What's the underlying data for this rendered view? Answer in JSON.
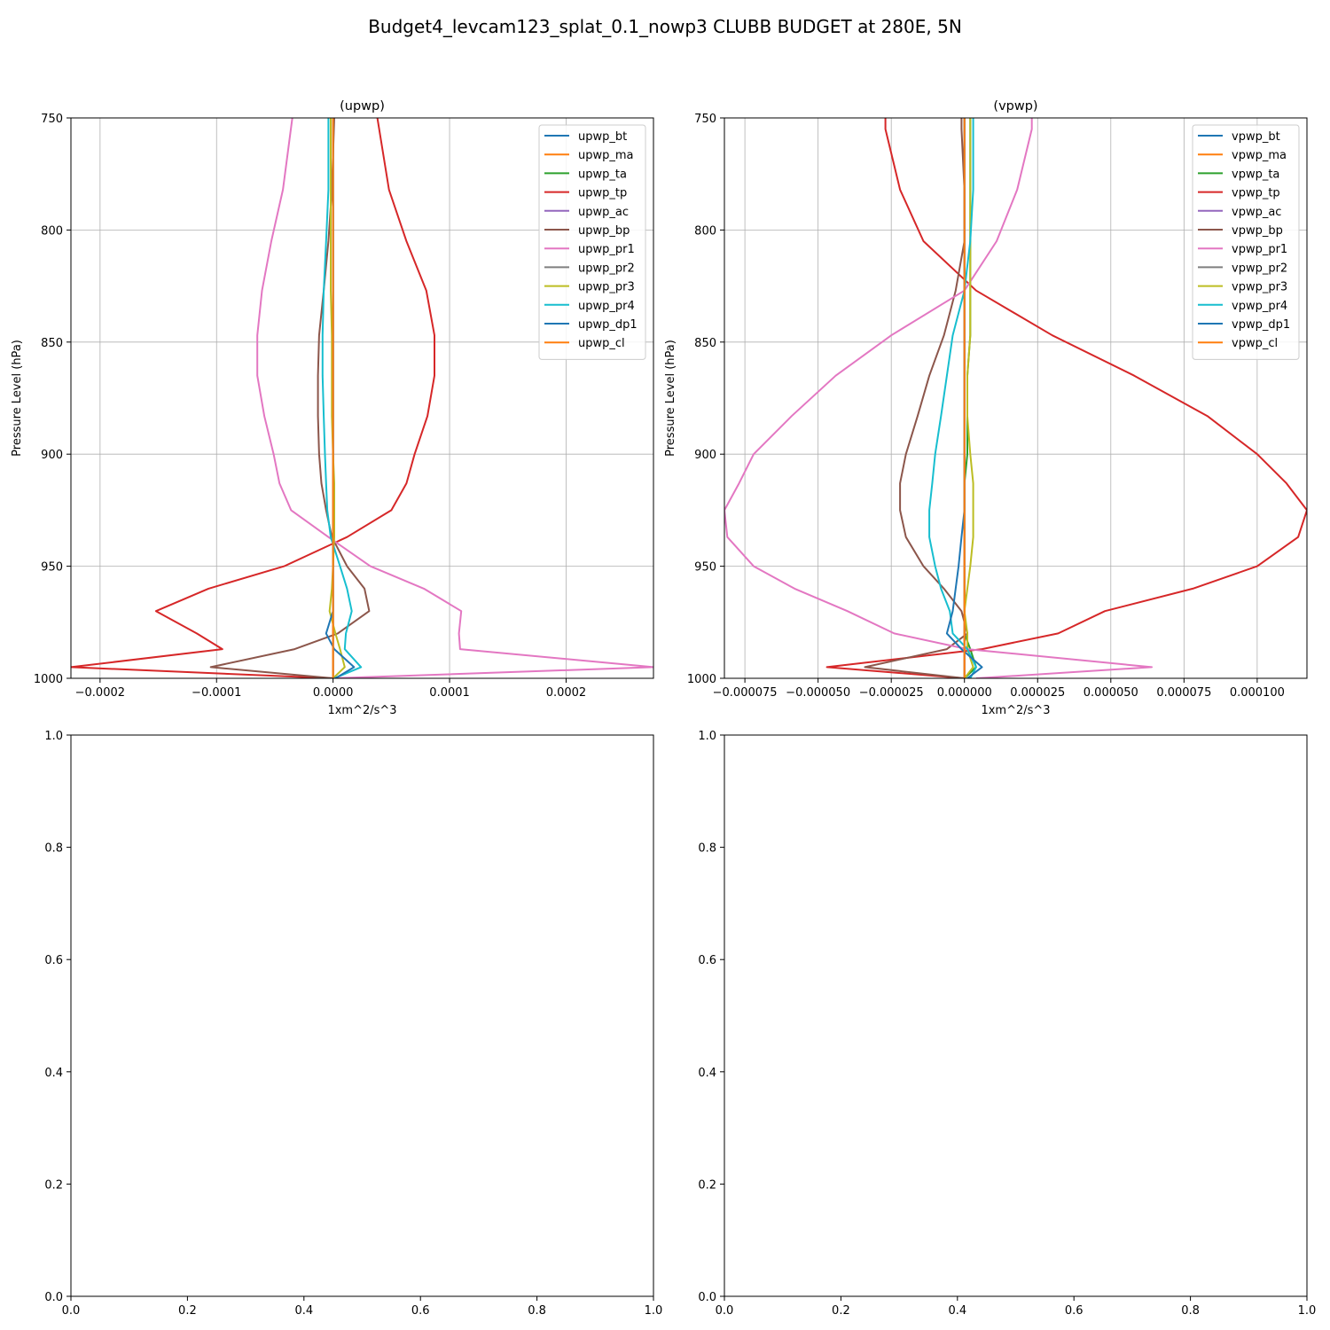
{
  "figure": {
    "suptitle": "Budget4_levcam123_splat_0.1_nowp3 CLUBB BUDGET at 280E, 5N"
  },
  "chart_data": [
    {
      "type": "line",
      "title": "(upwp)",
      "xlabel": "1xm^2/s^3",
      "ylabel": "Pressure Level (hPa)",
      "xlim": [
        -0.000225,
        0.000275
      ],
      "ylim": [
        1000,
        750
      ],
      "y_inverted": true,
      "xticks": [
        -0.0002,
        -0.0001,
        0.0,
        0.0001,
        0.0002
      ],
      "xtick_labels": [
        "−0.0002",
        "−0.0001",
        "0.0000",
        "0.0001",
        "0.0002"
      ],
      "yticks": [
        750,
        800,
        850,
        900,
        950,
        1000
      ],
      "ytick_labels": [
        "750",
        "800",
        "850",
        "900",
        "950",
        "1000"
      ],
      "grid": true,
      "legend": "upper right",
      "levels": [
        750,
        782,
        805,
        827,
        847,
        865,
        883,
        900,
        913,
        925,
        937,
        950,
        960,
        970,
        980,
        987,
        995,
        1000
      ],
      "series": [
        {
          "name": "upwp_bt",
          "color": "#1f77b4",
          "values": [
            0,
            0,
            0,
            0,
            0,
            0,
            0,
            0,
            0,
            0,
            0,
            0,
            0,
            0,
            0,
            0,
            0,
            0
          ]
        },
        {
          "name": "upwp_ma",
          "color": "#ff7f0e",
          "values": [
            0,
            0,
            0,
            0,
            0,
            0,
            0,
            0,
            0,
            0,
            0,
            0,
            0,
            0,
            0,
            0,
            0,
            0
          ]
        },
        {
          "name": "upwp_ta",
          "color": "#2ca02c",
          "values": [
            0,
            0,
            0,
            0,
            0,
            0,
            0,
            0,
            0,
            0,
            0,
            0,
            0,
            0,
            0,
            0,
            0,
            0
          ]
        },
        {
          "name": "upwp_tp",
          "color": "#d62728",
          "values": [
            3.8e-05,
            4.8e-05,
            6.3e-05,
            8e-05,
            8.7e-05,
            8.7e-05,
            8.1e-05,
            7e-05,
            6.3e-05,
            5e-05,
            1.2e-05,
            -4.2e-05,
            -0.000107,
            -0.000152,
            -0.000117,
            -9.5e-05,
            -0.000225,
            0
          ]
        },
        {
          "name": "upwp_ac",
          "color": "#9467bd",
          "values": [
            0,
            0,
            0,
            0,
            0,
            0,
            0,
            0,
            0,
            0,
            0,
            0,
            0,
            0,
            0,
            0,
            0,
            0
          ]
        },
        {
          "name": "upwp_bp",
          "color": "#8c564b",
          "values": [
            1e-06,
            -1e-06,
            -4e-06,
            -8e-06,
            -1.2e-05,
            -1.3e-05,
            -1.3e-05,
            -1.2e-05,
            -1e-05,
            -6e-06,
            -1e-06,
            1.2e-05,
            2.7e-05,
            3.1e-05,
            4e-06,
            -3.3e-05,
            -0.000105,
            0
          ]
        },
        {
          "name": "upwp_pr1",
          "color": "#e377c2",
          "values": [
            -3.5e-05,
            -4.3e-05,
            -5.3e-05,
            -6.1e-05,
            -6.5e-05,
            -6.5e-05,
            -5.9e-05,
            -5.1e-05,
            -4.6e-05,
            -3.6e-05,
            -4e-06,
            3.2e-05,
            7.8e-05,
            0.00011,
            0.000108,
            0.000109,
            0.000275,
            0
          ]
        },
        {
          "name": "upwp_pr2",
          "color": "#7f7f7f",
          "values": [
            0,
            0,
            0,
            0,
            0,
            0,
            0,
            0,
            0,
            0,
            0,
            0,
            0,
            0,
            0,
            0,
            0,
            0
          ]
        },
        {
          "name": "upwp_pr3",
          "color": "#bcbd22",
          "values": [
            -2e-06,
            -2e-06,
            -2e-06,
            -2e-06,
            -1e-06,
            -1e-06,
            -1e-06,
            0,
            1e-06,
            1e-06,
            1e-06,
            0,
            -1e-06,
            -3e-06,
            2e-06,
            6e-06,
            1e-05,
            0
          ]
        },
        {
          "name": "upwp_pr4",
          "color": "#17becf",
          "values": [
            -4e-06,
            -4e-06,
            -6e-06,
            -8e-06,
            -9e-06,
            -9e-06,
            -8e-06,
            -7e-06,
            -6e-06,
            -5e-06,
            -2e-06,
            6e-06,
            1.2e-05,
            1.6e-05,
            1.1e-05,
            1e-05,
            2.4e-05,
            1e-06
          ]
        },
        {
          "name": "upwp_dp1",
          "color": "#1f77b4",
          "values": [
            0,
            0,
            0,
            0,
            0,
            0,
            0,
            0,
            0,
            0,
            0,
            0,
            0,
            0,
            -6e-06,
            1e-06,
            1.8e-05,
            2e-06
          ]
        },
        {
          "name": "upwp_cl",
          "color": "#ff7f0e",
          "values": [
            0,
            0,
            0,
            0,
            0,
            0,
            0,
            0,
            0,
            0,
            0,
            0,
            0,
            0,
            0,
            0,
            0,
            0
          ]
        }
      ]
    },
    {
      "type": "line",
      "title": "(vpwp)",
      "xlabel": "1xm^2/s^3",
      "ylabel": "Pressure Level (hPa)",
      "xlim": [
        -8.2e-05,
        0.000117
      ],
      "ylim": [
        1000,
        750
      ],
      "y_inverted": true,
      "xticks": [
        -7.5e-05,
        -5e-05,
        -2.5e-05,
        0.0,
        2.5e-05,
        5e-05,
        7.5e-05,
        0.0001
      ],
      "xtick_labels": [
        "−0.000075",
        "−0.000050",
        "−0.000025",
        "0.000000",
        "0.000025",
        "0.000050",
        "0.000075",
        "0.000100"
      ],
      "yticks": [
        750,
        800,
        850,
        900,
        950,
        1000
      ],
      "ytick_labels": [
        "750",
        "800",
        "850",
        "900",
        "950",
        "1000"
      ],
      "grid": true,
      "legend": "upper right",
      "levels": [
        750,
        755,
        782,
        805,
        827,
        847,
        865,
        883,
        900,
        913,
        925,
        937,
        950,
        960,
        970,
        980,
        987,
        995,
        1000
      ],
      "series": [
        {
          "name": "vpwp_bt",
          "color": "#1f77b4",
          "values": [
            0,
            0,
            0,
            0,
            0,
            0,
            0,
            0,
            0,
            0,
            0,
            0,
            0,
            0,
            0,
            0,
            0,
            0,
            0
          ]
        },
        {
          "name": "vpwp_ma",
          "color": "#ff7f0e",
          "values": [
            0,
            0,
            0,
            0,
            0,
            0,
            0,
            0,
            0,
            0,
            0,
            0,
            0,
            0,
            0,
            0,
            0,
            0,
            0
          ]
        },
        {
          "name": "vpwp_ta",
          "color": "#2ca02c",
          "values": [
            2e-06,
            2e-06,
            2e-06,
            2e-06,
            2e-06,
            2e-06,
            1e-06,
            1e-06,
            1e-06,
            0,
            0,
            0,
            0,
            0,
            0,
            0,
            2e-06,
            4e-06,
            0
          ]
        },
        {
          "name": "vpwp_tp",
          "color": "#d62728",
          "values": [
            -2.7e-05,
            -2.7e-05,
            -2.2e-05,
            -1.4e-05,
            4e-06,
            3e-05,
            5.8e-05,
            8.3e-05,
            0.0001,
            0.00011,
            0.000117,
            0.000114,
            0.0001,
            7.8e-05,
            4.8e-05,
            3.2e-05,
            6e-06,
            -4.7e-05,
            0
          ]
        },
        {
          "name": "vpwp_ac",
          "color": "#9467bd",
          "values": [
            0,
            0,
            0,
            0,
            0,
            0,
            0,
            0,
            0,
            0,
            0,
            0,
            0,
            0,
            0,
            0,
            0,
            0,
            0
          ]
        },
        {
          "name": "vpwp_bp",
          "color": "#8c564b",
          "values": [
            -1e-06,
            -1e-06,
            0,
            0,
            -3e-06,
            -7e-06,
            -1.2e-05,
            -1.6e-05,
            -2e-05,
            -2.2e-05,
            -2.2e-05,
            -2e-05,
            -1.4e-05,
            -7e-06,
            -1e-06,
            1e-06,
            -6e-06,
            -3.4e-05,
            0
          ]
        },
        {
          "name": "vpwp_pr1",
          "color": "#e377c2",
          "values": [
            2.3e-05,
            2.3e-05,
            1.8e-05,
            1.1e-05,
            0,
            -2.5e-05,
            -4.4e-05,
            -5.9e-05,
            -7.2e-05,
            -7.7e-05,
            -8.2e-05,
            -8.1e-05,
            -7.2e-05,
            -5.8e-05,
            -4e-05,
            -2.4e-05,
            1e-06,
            6.4e-05,
            4e-06
          ]
        },
        {
          "name": "vpwp_pr2",
          "color": "#7f7f7f",
          "values": [
            0,
            0,
            0,
            0,
            0,
            0,
            0,
            0,
            0,
            0,
            0,
            0,
            0,
            0,
            0,
            0,
            0,
            0,
            0
          ]
        },
        {
          "name": "vpwp_pr3",
          "color": "#bcbd22",
          "values": [
            2e-06,
            2e-06,
            2e-06,
            2e-06,
            2e-06,
            2e-06,
            1e-06,
            1e-06,
            2e-06,
            3e-06,
            3e-06,
            3e-06,
            2e-06,
            1e-06,
            0,
            1e-06,
            1e-06,
            3e-06,
            0
          ]
        },
        {
          "name": "vpwp_pr4",
          "color": "#17becf",
          "values": [
            3e-06,
            3e-06,
            3e-06,
            2e-06,
            0,
            -4e-06,
            -6e-06,
            -8e-06,
            -1e-05,
            -1.1e-05,
            -1.2e-05,
            -1.2e-05,
            -1e-05,
            -8e-06,
            -5e-06,
            -4e-06,
            1e-06,
            4e-06,
            2e-06
          ]
        },
        {
          "name": "vpwp_dp1",
          "color": "#1f77b4",
          "values": [
            0,
            0,
            0,
            0,
            0,
            0,
            0,
            0,
            0,
            0,
            0,
            -1e-06,
            -2e-06,
            -3e-06,
            -4e-06,
            -6e-06,
            -1e-06,
            6e-06,
            1e-06
          ]
        },
        {
          "name": "vpwp_cl",
          "color": "#ff7f0e",
          "values": [
            0,
            0,
            0,
            0,
            0,
            0,
            0,
            0,
            0,
            0,
            0,
            0,
            0,
            0,
            0,
            0,
            0,
            0,
            0
          ]
        }
      ]
    },
    {
      "type": "line",
      "title": "",
      "xlim": [
        0,
        1
      ],
      "ylim": [
        0,
        1
      ],
      "xticks": [
        0,
        0.2,
        0.4,
        0.6,
        0.8,
        1.0
      ],
      "xtick_labels": [
        "0.0",
        "0.2",
        "0.4",
        "0.6",
        "0.8",
        "1.0"
      ],
      "yticks": [
        0,
        0.2,
        0.4,
        0.6,
        0.8,
        1.0
      ],
      "ytick_labels": [
        "0.0",
        "0.2",
        "0.4",
        "0.6",
        "0.8",
        "1.0"
      ],
      "grid": false,
      "series": []
    },
    {
      "type": "line",
      "title": "",
      "xlim": [
        0,
        1
      ],
      "ylim": [
        0,
        1
      ],
      "xticks": [
        0,
        0.2,
        0.4,
        0.6,
        0.8,
        1.0
      ],
      "xtick_labels": [
        "0.0",
        "0.2",
        "0.4",
        "0.6",
        "0.8",
        "1.0"
      ],
      "yticks": [
        0,
        0.2,
        0.4,
        0.6,
        0.8,
        1.0
      ],
      "ytick_labels": [
        "0.0",
        "0.2",
        "0.4",
        "0.6",
        "0.8",
        "1.0"
      ],
      "grid": false,
      "series": []
    }
  ]
}
